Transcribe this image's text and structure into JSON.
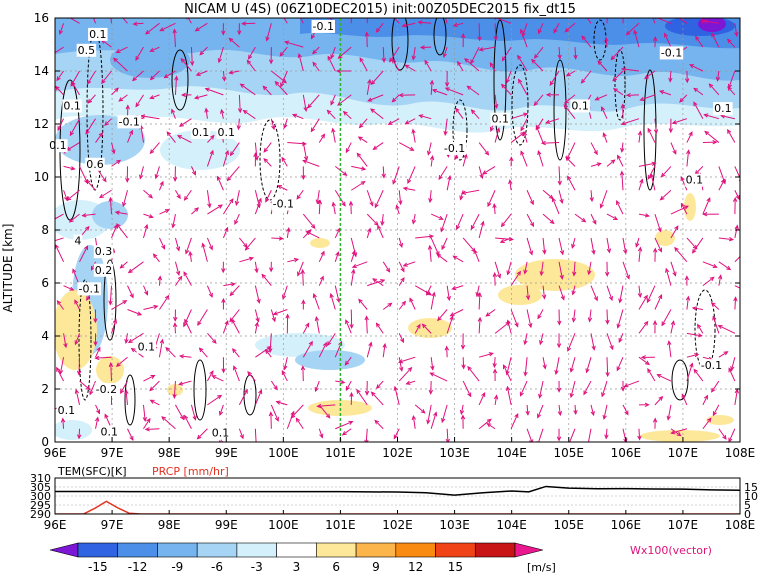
{
  "chart_data": [
    {
      "type": "heatmap",
      "title": "NICAM U (4S) (06Z10DEC2015) init:00Z05DEC2015 fix_dt15",
      "ylabel": "ALTITUDE [km]",
      "xlabel": "",
      "x_ticks": [
        "96E",
        "97E",
        "98E",
        "99E",
        "100E",
        "101E",
        "102E",
        "103E",
        "104E",
        "105E",
        "106E",
        "107E",
        "108E"
      ],
      "y_ticks": [
        "0",
        "2",
        "4",
        "6",
        "8",
        "10",
        "12",
        "14",
        "16"
      ],
      "xlim": [
        96,
        108
      ],
      "ylim": [
        0,
        16
      ],
      "grid": true,
      "marker_line_lon": 101,
      "contour_labels": [
        {
          "text": "0.1",
          "lon": 96.75,
          "alt": 15.4
        },
        {
          "text": "-0.1",
          "lon": 100.7,
          "alt": 15.7
        },
        {
          "text": "0.5",
          "lon": 96.55,
          "alt": 14.8
        },
        {
          "text": "-0.1",
          "lon": 106.8,
          "alt": 14.7
        },
        {
          "text": "0.1",
          "lon": 96.3,
          "alt": 12.7
        },
        {
          "text": "-0.1",
          "lon": 97.3,
          "alt": 12.1
        },
        {
          "text": "0.1",
          "lon": 98.55,
          "alt": 11.7
        },
        {
          "text": "0.1",
          "lon": 99.0,
          "alt": 11.7
        },
        {
          "text": "0.1",
          "lon": 103.8,
          "alt": 12.2
        },
        {
          "text": "-0.1",
          "lon": 103.0,
          "alt": 11.1
        },
        {
          "text": "0.1",
          "lon": 105.2,
          "alt": 12.7
        },
        {
          "text": "0.1",
          "lon": 107.7,
          "alt": 12.6
        },
        {
          "text": "0.1",
          "lon": 96.05,
          "alt": 11.2
        },
        {
          "text": "0.6",
          "lon": 96.7,
          "alt": 10.5
        },
        {
          "text": "-0.1",
          "lon": 100.0,
          "alt": 9.0
        },
        {
          "text": "0.1",
          "lon": 107.2,
          "alt": 9.9
        },
        {
          "text": "4",
          "lon": 96.4,
          "alt": 7.6
        },
        {
          "text": "0.3",
          "lon": 96.85,
          "alt": 7.2
        },
        {
          "text": "0.2",
          "lon": 96.85,
          "alt": 6.5
        },
        {
          "text": "-0.1",
          "lon": 96.6,
          "alt": 5.8
        },
        {
          "text": "0.1",
          "lon": 97.6,
          "alt": 3.6
        },
        {
          "text": "-0.1",
          "lon": 107.5,
          "alt": 2.9
        },
        {
          "text": "-0.2",
          "lon": 96.9,
          "alt": 2.0
        },
        {
          "text": "0.1",
          "lon": 96.2,
          "alt": 1.2
        },
        {
          "text": "0.1",
          "lon": 96.95,
          "alt": 0.4
        },
        {
          "text": "0.1",
          "lon": 98.9,
          "alt": 0.35
        }
      ]
    },
    {
      "type": "line",
      "label_left": "TEM(SFC)[K]",
      "label_right": "PRCP [mm/hr]",
      "y_ticks_left": [
        "290",
        "295",
        "300",
        "305",
        "310"
      ],
      "y_ticks_right": [
        "0",
        "5",
        "10",
        "15"
      ],
      "ylim_left": [
        290,
        310
      ],
      "ylim_right": [
        0,
        20
      ],
      "x_ticks": [
        "96E",
        "97E",
        "98E",
        "99E",
        "100E",
        "101E",
        "102E",
        "103E",
        "104E",
        "105E",
        "106E",
        "107E",
        "108E"
      ],
      "series": [
        {
          "color": "#000000",
          "axis": "left",
          "x": [
            96,
            96.5,
            97,
            97.5,
            98,
            98.5,
            99,
            99.5,
            100,
            100.5,
            101,
            101.5,
            102,
            102.5,
            103,
            103.5,
            104,
            104.3,
            104.6,
            105,
            105.5,
            106,
            106.5,
            107,
            107.5,
            108
          ],
          "values": [
            302.5,
            302.5,
            302.5,
            302.4,
            302.4,
            302.4,
            302.4,
            302.4,
            302.4,
            302.4,
            302.4,
            302.3,
            302.2,
            301.8,
            300.5,
            301.8,
            302.8,
            302.3,
            305.3,
            304.4,
            304.0,
            304.1,
            303.9,
            303.8,
            303.4,
            303.2
          ]
        },
        {
          "color": "#e53020",
          "axis": "right",
          "x": [
            96,
            96.5,
            96.7,
            96.9,
            97.1,
            97.3,
            97.5,
            108
          ],
          "values": [
            0,
            0,
            3.2,
            7.0,
            3.4,
            0.4,
            0,
            0
          ]
        }
      ]
    }
  ],
  "colorbar": {
    "levels": [
      "-15",
      "-12",
      "-9",
      "-6",
      "-3",
      "3",
      "6",
      "9",
      "12",
      "15"
    ],
    "colors": [
      "#7d17d6",
      "#2f63e1",
      "#4b8fe8",
      "#75b4ee",
      "#a6d4f4",
      "#d4f0fb",
      "#ffffff",
      "#fde89a",
      "#fbb54a",
      "#f98a12",
      "#f04418",
      "#c81414",
      "#e9188f"
    ],
    "units": "[m/s]",
    "vector_label": "Wx100(vector)"
  },
  "colors": {
    "vector": "#e0107c",
    "marker_line": "#30b030"
  }
}
